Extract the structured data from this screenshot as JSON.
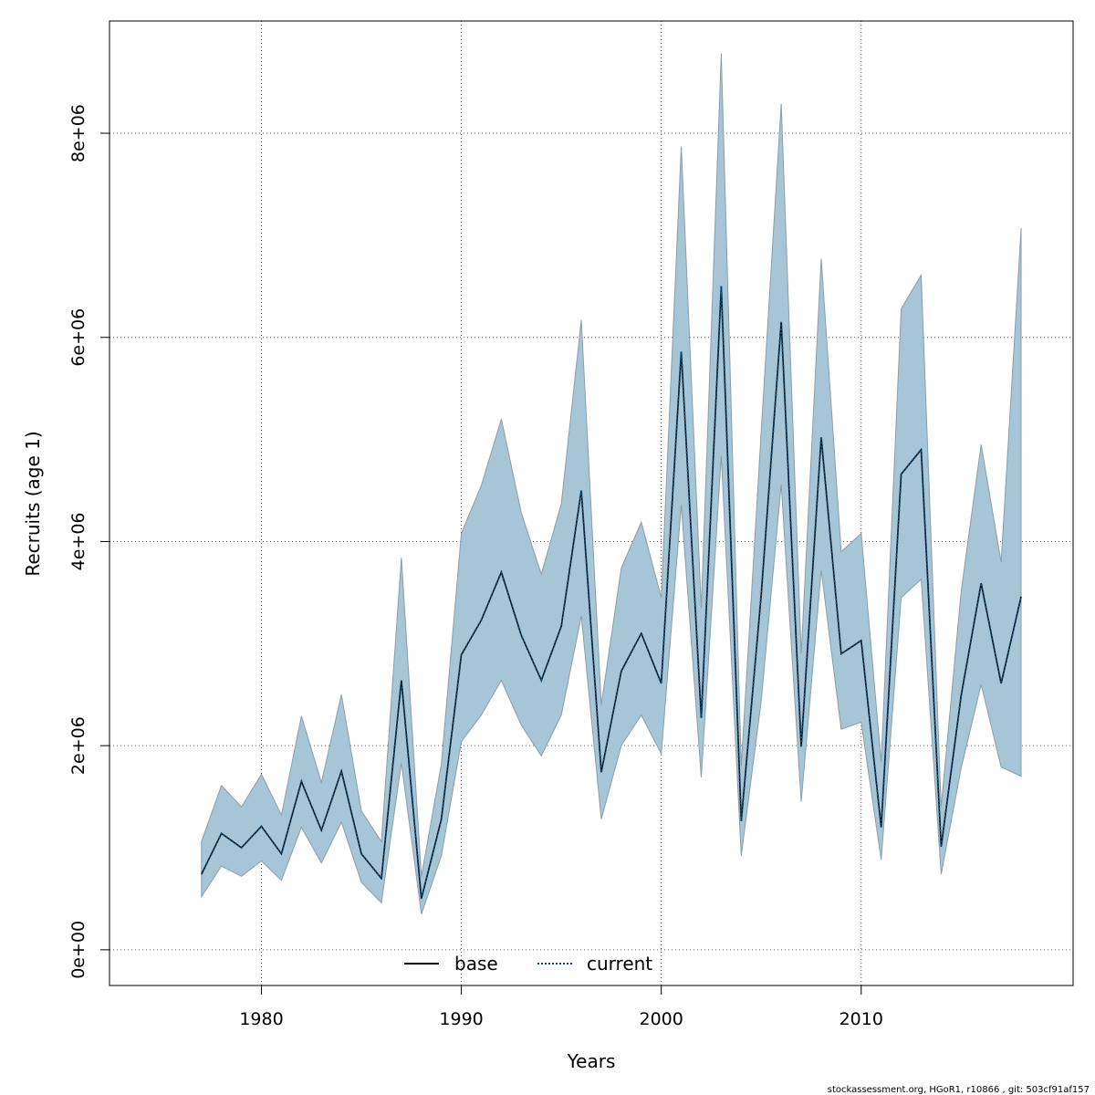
{
  "chart_data": {
    "type": "line",
    "xlabel": "Years",
    "ylabel": "Recruits (age 1)",
    "xlim": [
      1972.4,
      2020.6
    ],
    "ylim": [
      -350000,
      9100000
    ],
    "x_ticks": [
      1980,
      1990,
      2000,
      2010
    ],
    "x_tick_labels": [
      "1980",
      "1990",
      "2000",
      "2010"
    ],
    "y_ticks": [
      0,
      2000000,
      4000000,
      6000000,
      8000000
    ],
    "y_tick_labels": [
      "0e+00",
      "2e+06",
      "4e+06",
      "6e+06",
      "8e+06"
    ],
    "grid": true,
    "legend_position": "bottom-center",
    "x": [
      1977,
      1978,
      1979,
      1980,
      1981,
      1982,
      1983,
      1984,
      1985,
      1986,
      1987,
      1988,
      1989,
      1990,
      1991,
      1992,
      1993,
      1994,
      1995,
      1996,
      1997,
      1998,
      1999,
      2000,
      2001,
      2002,
      2003,
      2004,
      2005,
      2006,
      2007,
      2008,
      2009,
      2010,
      2011,
      2012,
      2013,
      2014,
      2015,
      2016,
      2017,
      2018
    ],
    "band": {
      "upper": [
        1060000,
        1610000,
        1400000,
        1720000,
        1320000,
        2290000,
        1640000,
        2500000,
        1360000,
        1060000,
        3840000,
        720000,
        1820000,
        4080000,
        4550000,
        5200000,
        4280000,
        3680000,
        4370000,
        6170000,
        2400000,
        3740000,
        4190000,
        3450000,
        7870000,
        3350000,
        8780000,
        1800000,
        5080000,
        8290000,
        2900000,
        6770000,
        3900000,
        4080000,
        1840000,
        6280000,
        6610000,
        1400000,
        3510000,
        4950000,
        3800000,
        7070000
      ],
      "lower": [
        520000,
        820000,
        720000,
        870000,
        680000,
        1200000,
        850000,
        1250000,
        660000,
        460000,
        1830000,
        350000,
        920000,
        2040000,
        2300000,
        2640000,
        2200000,
        1900000,
        2300000,
        3270000,
        1280000,
        2000000,
        2300000,
        1920000,
        4360000,
        1690000,
        4840000,
        920000,
        2440000,
        4560000,
        1450000,
        3720000,
        2160000,
        2230000,
        880000,
        3450000,
        3630000,
        740000,
        1780000,
        2600000,
        1790000,
        1700000
      ]
    },
    "series": [
      {
        "name": "base",
        "style": "solid",
        "color": "#000000",
        "values": [
          740000,
          1140000,
          1000000,
          1210000,
          940000,
          1650000,
          1170000,
          1750000,
          940000,
          700000,
          2640000,
          500000,
          1280000,
          2890000,
          3230000,
          3700000,
          3080000,
          2640000,
          3170000,
          4500000,
          1740000,
          2730000,
          3100000,
          2610000,
          5860000,
          2270000,
          6500000,
          1260000,
          3480000,
          6150000,
          1990000,
          5020000,
          2900000,
          3030000,
          1200000,
          4660000,
          4900000,
          1010000,
          2490000,
          3590000,
          2610000,
          3460000
        ]
      },
      {
        "name": "current",
        "style": "dotted",
        "color": "#0b4f7a",
        "values": [
          740000,
          1140000,
          1000000,
          1210000,
          940000,
          1650000,
          1170000,
          1750000,
          940000,
          700000,
          2640000,
          500000,
          1280000,
          2890000,
          3230000,
          3700000,
          3080000,
          2640000,
          3170000,
          4500000,
          1740000,
          2730000,
          3100000,
          2610000,
          5860000,
          2270000,
          6500000,
          1260000,
          3480000,
          6150000,
          1990000,
          5020000,
          2900000,
          3030000,
          1200000,
          4660000,
          4900000,
          1010000,
          2490000,
          3590000,
          2610000,
          3460000
        ]
      }
    ],
    "colors": {
      "band_fill": "#a6c5d6",
      "band_stroke": "#8a9ea8",
      "grid": "#555555"
    }
  },
  "footer": {
    "text": "stockassessment.org, HGoR1, r10866 , git: 503cf91af157"
  }
}
